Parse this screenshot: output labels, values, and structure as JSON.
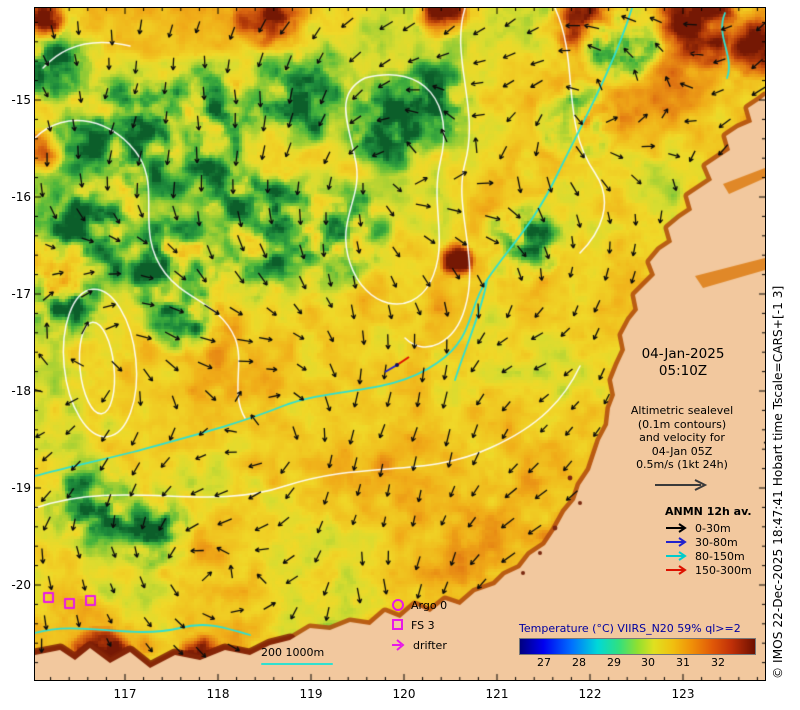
{
  "colors": {
    "land": "#f2c89e",
    "magenta": "#e818e8",
    "bathy_cyan": "#2fe0d0",
    "contour_white": "#ffffff",
    "arrow_black": "#0c0c0c",
    "colorbar_title_blue": "#0000a0",
    "coast_hot": "#b04a10",
    "coast_dark": "#7e1e06"
  },
  "axes": {
    "lat_ticks": [
      "-15",
      "-16",
      "-17",
      "-18",
      "-19",
      "-20"
    ],
    "lon_ticks": [
      "117",
      "118",
      "119",
      "120",
      "121",
      "122",
      "123"
    ]
  },
  "annotations": {
    "date": "04-Jan-2025",
    "time": "05:10Z",
    "altimetric_lines": [
      "Altimetric sealevel",
      "(0.1m contours)",
      "and velocity for",
      "04-Jan 05Z",
      "0.5m/s (1kt 24h)"
    ]
  },
  "anmn_legend": {
    "title": "ANMN 12h av.",
    "items": [
      {
        "label": "0-30m",
        "color": "#000000"
      },
      {
        "label": "30-80m",
        "color": "#2222cc"
      },
      {
        "label": "80-150m",
        "color": "#00cccc"
      },
      {
        "label": "150-300m",
        "color": "#dd1100"
      }
    ]
  },
  "marker_legend": {
    "argo": "Argo 0",
    "fs": "FS 3",
    "drifter": "drifter"
  },
  "scale_bar": {
    "label": "200 1000m"
  },
  "colorbar": {
    "title": "Temperature (°C) VIIRS_N20 59% ql>=2",
    "ticks": [
      "27",
      "28",
      "29",
      "30",
      "31",
      "32"
    ]
  },
  "copyright": "© IMOS 22-Dec-2025 18:47:41 Hobart time Tscale=CARS+[-1 3]"
}
